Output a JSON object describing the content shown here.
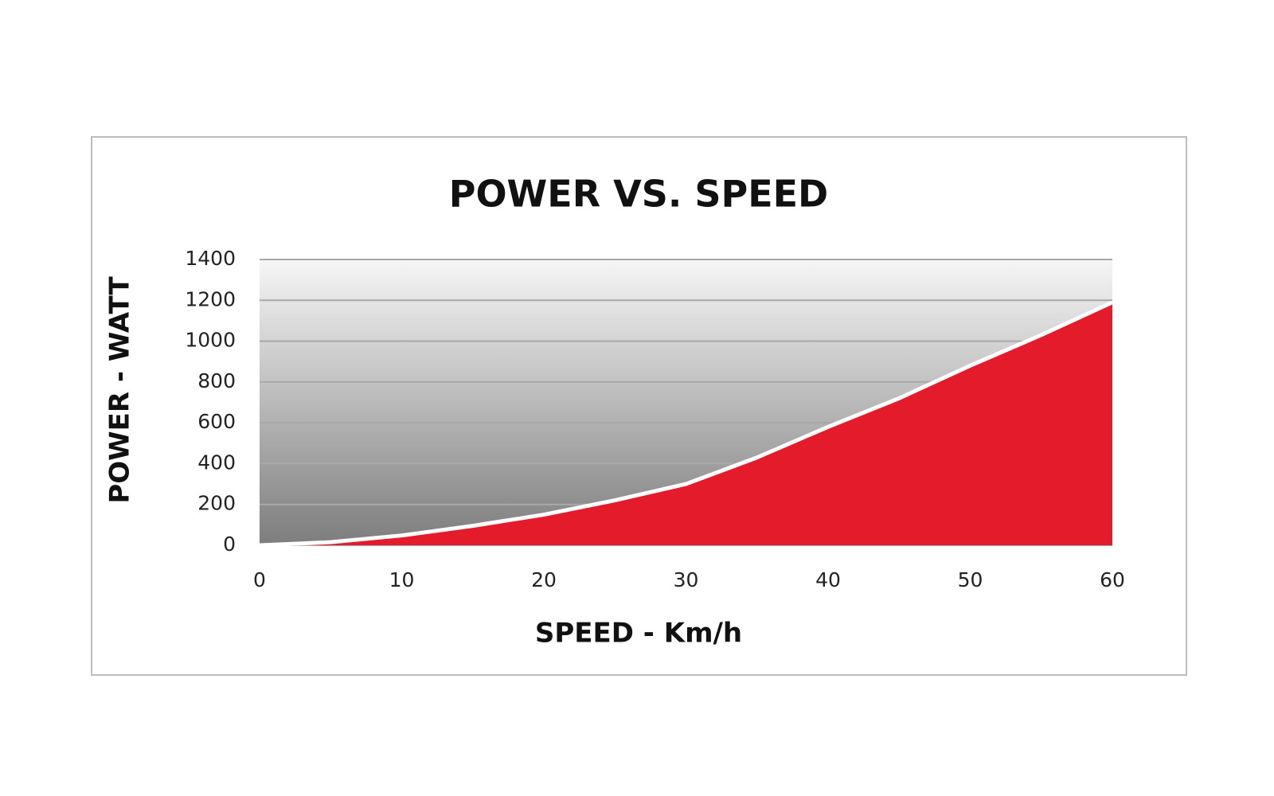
{
  "chart_data": {
    "type": "area",
    "title": "POWER VS. SPEED",
    "x_label": "SPEED - Km/h",
    "y_label": "POWER - WATT",
    "x": [
      0,
      5,
      10,
      15,
      20,
      25,
      30,
      35,
      40,
      45,
      50,
      55,
      60
    ],
    "values": [
      0,
      15,
      48,
      95,
      150,
      220,
      300,
      430,
      580,
      720,
      880,
      1030,
      1190
    ],
    "color": "#e31b2a",
    "xlim": [
      0,
      60
    ],
    "xticks": [
      0,
      10,
      20,
      30,
      40,
      50,
      60
    ],
    "ylim": [
      0,
      1400
    ],
    "yticks": [
      0,
      200,
      400,
      600,
      800,
      1000,
      1200,
      1400
    ],
    "grid": true
  }
}
